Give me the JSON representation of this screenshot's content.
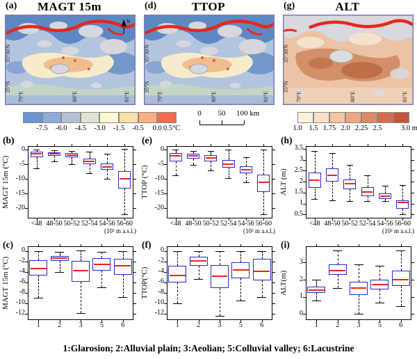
{
  "figure": {
    "caption": "1:Glarosion; 2:Alluvial plain; 3:Aeolian; 5:Colluvial valley; 6:Lacustrine"
  },
  "style": {
    "box_color": "#2727cf",
    "median_color": "#e8241f",
    "whisker_color": "#000000",
    "map_border": "#7a7ab2"
  },
  "maps": [
    {
      "id": "a",
      "label": "(a)",
      "title": "MAGT 15m",
      "theme": "cold",
      "north_arrow": true,
      "lat_labels": [
        "35°30'N",
        "35°N"
      ],
      "lon_labels": [
        "79°E",
        "80°E",
        "81°E"
      ]
    },
    {
      "id": "d",
      "label": "(d)",
      "title": "TTOP",
      "theme": "cold",
      "north_arrow": false,
      "lat_labels": [
        "35°30'N",
        "35°N"
      ],
      "lon_labels": [
        "79°E",
        "80°E",
        "81°E"
      ]
    },
    {
      "id": "g",
      "label": "(g)",
      "title": "ALT",
      "theme": "warm",
      "north_arrow": false,
      "lat_labels": [
        "35°30'N",
        "35°N"
      ],
      "lon_labels": [
        "79°E",
        "80°E",
        "81°E"
      ]
    }
  ],
  "map_palettes": {
    "cold": {
      "base": "#b3c5de",
      "deep": "#5e88c4",
      "glacier": "#d7d7dd",
      "warm1": "#f6eccb",
      "warm2": "#f2bd8e",
      "hot": "#e5553a",
      "ribbon": "#e5281a",
      "bottom": "#c8d5c3",
      "wash": "#9db7da"
    },
    "warm": {
      "base": "#ecc3a4",
      "deep": "#cf8a62",
      "deeper": "#bf6f48",
      "glacier": "#d8d8de",
      "cream": "#f4e7d2",
      "ribbon": "#e5281a",
      "lake": "#dcdce2",
      "bottom": "#f0d4ba"
    }
  },
  "legends": {
    "temp_colorbar": {
      "unit": "°C",
      "colors": [
        "#6a93d2",
        "#8fabdb",
        "#b4c2d0",
        "#dbe4d3",
        "#fdf8d2",
        "#fbdfa8",
        "#f9b080",
        "#f26b4d"
      ],
      "labels": [
        "-7.5",
        "-6.0",
        "-4.5",
        "-3.0",
        "-1.5",
        "-0.5",
        "0.0",
        "0.5°C"
      ]
    },
    "scale_bar": {
      "labels": [
        "0",
        "50",
        "100 km"
      ]
    },
    "alt_colorbar": {
      "unit": "m",
      "colors": [
        "#fdf0dc",
        "#fbe0c5",
        "#f5c4a5",
        "#eda682",
        "#e08a62",
        "#d06e4b",
        "#c25639"
      ],
      "labels": [
        "1.0",
        "1.5",
        "1.75",
        "2.0",
        "2.25",
        "2.5",
        "3.0 m"
      ]
    }
  },
  "chart_data": [
    {
      "id": "b",
      "label": "(b)",
      "type": "box",
      "group": "elevation",
      "ylabel": "MAGT 15m (°C)",
      "ylim": [
        -23.5,
        1.3
      ],
      "yticks": [
        {
          "v": 0,
          "t": "0"
        },
        {
          "v": -5,
          "t": "-5"
        },
        {
          "v": -10,
          "t": "-10"
        },
        {
          "v": -15,
          "t": "-15"
        },
        {
          "v": -20,
          "t": "-20"
        }
      ],
      "categories": [
        "<48",
        "48-50",
        "50-52",
        "52-54",
        "54-56",
        "56-60"
      ],
      "xnote": "(10² m a.s.l.)",
      "boxes": [
        {
          "lo": -6.3,
          "q1": -2.6,
          "med": -1.3,
          "q3": -0.6,
          "hi": 0.2
        },
        {
          "lo": -4.0,
          "q1": -2.1,
          "med": -1.4,
          "q3": -0.9,
          "hi": -0.2
        },
        {
          "lo": -5.0,
          "q1": -2.6,
          "med": -1.8,
          "q3": -1.2,
          "hi": -0.3
        },
        {
          "lo": -8.0,
          "q1": -5.0,
          "med": -3.9,
          "q3": -2.9,
          "hi": -0.5
        },
        {
          "lo": -9.9,
          "q1": -6.9,
          "med": -5.8,
          "q3": -4.7,
          "hi": -1.3
        },
        {
          "lo": -22.0,
          "q1": -13.3,
          "med": -9.9,
          "q3": -7.4,
          "hi": 0.3
        }
      ]
    },
    {
      "id": "e",
      "label": "(e)",
      "type": "box",
      "group": "elevation",
      "ylabel": "TTOP (°C)",
      "ylim": [
        -23.5,
        1.3
      ],
      "yticks": [
        {
          "v": 0,
          "t": "0"
        },
        {
          "v": -5,
          "t": "-5"
        },
        {
          "v": -10,
          "t": "-10"
        },
        {
          "v": -15,
          "t": "-15"
        },
        {
          "v": -20,
          "t": "-20"
        }
      ],
      "categories": [
        "<48",
        "48-50",
        "50-52",
        "52-54",
        "54-56",
        "56-60"
      ],
      "xnote": "(10² m a.s.l.)",
      "boxes": [
        {
          "lo": -8.8,
          "q1": -4.0,
          "med": -2.1,
          "q3": -1.0,
          "hi": 0.0
        },
        {
          "lo": -5.2,
          "q1": -3.0,
          "med": -2.0,
          "q3": -1.3,
          "hi": -0.4
        },
        {
          "lo": -7.0,
          "q1": -3.9,
          "med": -2.7,
          "q3": -1.8,
          "hi": -0.4
        },
        {
          "lo": -9.7,
          "q1": -6.1,
          "med": -4.8,
          "q3": -3.4,
          "hi": 0.0
        },
        {
          "lo": -11.0,
          "q1": -8.1,
          "med": -6.8,
          "q3": -5.7,
          "hi": -2.5
        },
        {
          "lo": -22.0,
          "q1": -14.4,
          "med": -11.0,
          "q3": -8.4,
          "hi": 0.0
        }
      ]
    },
    {
      "id": "h",
      "label": "(h)",
      "type": "box",
      "group": "elevation",
      "ylabel": "ALT (m)",
      "ylim": [
        0.32,
        3.62
      ],
      "yticks": [
        {
          "v": 0.5,
          "t": "0.5"
        },
        {
          "v": 1,
          "t": "1"
        },
        {
          "v": 1.5,
          "t": "1.5"
        },
        {
          "v": 2,
          "t": "2"
        },
        {
          "v": 2.5,
          "t": "2.5"
        },
        {
          "v": 3,
          "t": "3"
        },
        {
          "v": 3.5,
          "t": "3.5"
        }
      ],
      "categories": [
        "<48",
        "48-50",
        "50-52",
        "52-54",
        "54-56",
        "56-60"
      ],
      "xnote": "(10² m a.s.l.)",
      "boxes": [
        {
          "lo": 1.2,
          "q1": 1.7,
          "med": 2.05,
          "q3": 2.4,
          "hi": 3.4
        },
        {
          "lo": 1.15,
          "q1": 2.0,
          "med": 2.3,
          "q3": 2.6,
          "hi": 3.3
        },
        {
          "lo": 1.1,
          "q1": 1.65,
          "med": 1.9,
          "q3": 2.1,
          "hi": 2.75
        },
        {
          "lo": 1.1,
          "q1": 1.35,
          "med": 1.52,
          "q3": 1.75,
          "hi": 2.3
        },
        {
          "lo": 1.1,
          "q1": 1.2,
          "med": 1.32,
          "q3": 1.45,
          "hi": 1.8
        },
        {
          "lo": 0.5,
          "q1": 0.75,
          "med": 1.05,
          "q3": 1.15,
          "hi": 1.85
        }
      ]
    },
    {
      "id": "c",
      "label": "(c)",
      "type": "box",
      "group": "landform",
      "ylabel": "MAGT 15m (°C)",
      "ylim": [
        -13.2,
        0.9
      ],
      "yticks": [
        {
          "v": 0,
          "t": "0"
        },
        {
          "v": -2,
          "t": "-2"
        },
        {
          "v": -4,
          "t": "-4"
        },
        {
          "v": -6,
          "t": "-6"
        },
        {
          "v": -8,
          "t": "-8"
        },
        {
          "v": -10,
          "t": "-10"
        },
        {
          "v": -12,
          "t": "-12"
        }
      ],
      "categories": [
        "1",
        "2",
        "3",
        "5",
        "6"
      ],
      "boxes": [
        {
          "lo": -9.0,
          "q1": -4.7,
          "med": -3.4,
          "q3": -1.8,
          "hi": 0.0
        },
        {
          "lo": -4.0,
          "q1": -1.9,
          "med": -1.4,
          "q3": -0.9,
          "hi": -0.1
        },
        {
          "lo": -11.9,
          "q1": -5.9,
          "med": -3.7,
          "q3": -1.9,
          "hi": 0.1
        },
        {
          "lo": -6.9,
          "q1": -3.7,
          "med": -2.5,
          "q3": -1.4,
          "hi": -0.2
        },
        {
          "lo": -8.8,
          "q1": -4.6,
          "med": -2.8,
          "q3": -1.5,
          "hi": 0.0
        }
      ]
    },
    {
      "id": "f",
      "label": "(f)",
      "type": "box",
      "group": "landform",
      "ylabel": "TTOP(°C)",
      "ylim": [
        -13.2,
        0.9
      ],
      "yticks": [
        {
          "v": 0,
          "t": "0"
        },
        {
          "v": -2,
          "t": "-2"
        },
        {
          "v": -4,
          "t": "-4"
        },
        {
          "v": -6,
          "t": "-6"
        },
        {
          "v": -8,
          "t": "-8"
        },
        {
          "v": -10,
          "t": "-10"
        },
        {
          "v": -12,
          "t": "-12"
        }
      ],
      "categories": [
        "1",
        "2",
        "3",
        "5",
        "6"
      ],
      "boxes": [
        {
          "lo": -10.0,
          "q1": -6.0,
          "med": -4.7,
          "q3": -2.8,
          "hi": 0.0
        },
        {
          "lo": -5.4,
          "q1": -2.8,
          "med": -1.9,
          "q3": -1.1,
          "hi": 0.0
        },
        {
          "lo": -12.4,
          "q1": -7.1,
          "med": -4.8,
          "q3": -2.7,
          "hi": 0.0
        },
        {
          "lo": -9.5,
          "q1": -5.2,
          "med": -3.6,
          "q3": -2.2,
          "hi": 0.0
        },
        {
          "lo": -8.8,
          "q1": -5.6,
          "med": -3.9,
          "q3": -1.5,
          "hi": 0.0
        }
      ]
    },
    {
      "id": "i",
      "label": "(i)",
      "type": "box",
      "group": "landform",
      "ylabel": "ALT(m)",
      "ylim": [
        -0.35,
        3.95
      ],
      "yticks": [
        {
          "v": 0,
          "t": "0"
        },
        {
          "v": 1,
          "t": "1"
        },
        {
          "v": 2,
          "t": "2"
        },
        {
          "v": 3,
          "t": "3"
        }
      ],
      "categories": [
        "1",
        "2",
        "3",
        "5",
        "6"
      ],
      "boxes": [
        {
          "lo": 0.8,
          "q1": 1.25,
          "med": 1.4,
          "q3": 1.6,
          "hi": 2.0
        },
        {
          "lo": 1.5,
          "q1": 2.3,
          "med": 2.55,
          "q3": 2.9,
          "hi": 3.7
        },
        {
          "lo": 0.02,
          "q1": 1.1,
          "med": 1.5,
          "q3": 1.9,
          "hi": 2.9
        },
        {
          "lo": 0.65,
          "q1": 1.45,
          "med": 1.7,
          "q3": 2.0,
          "hi": 2.8
        },
        {
          "lo": 0.45,
          "q1": 1.65,
          "med": 2.0,
          "q3": 2.55,
          "hi": 3.7
        }
      ]
    }
  ]
}
